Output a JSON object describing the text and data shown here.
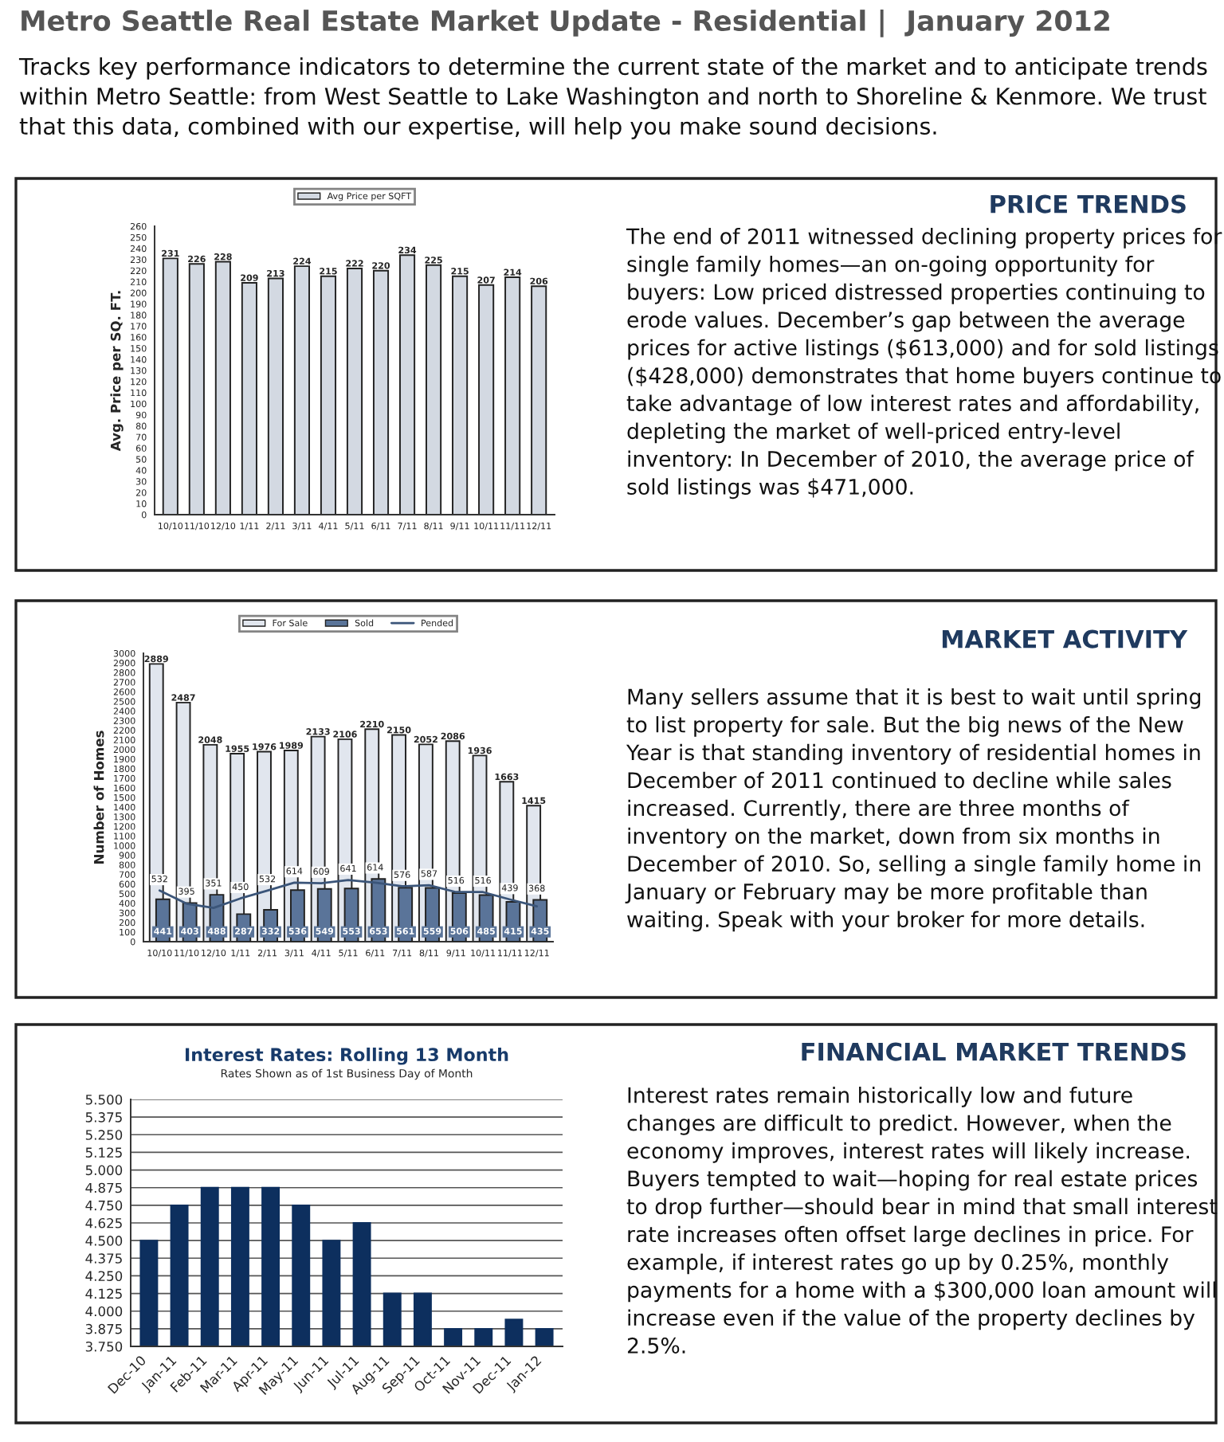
{
  "chart_data": [
    {
      "type": "other",
      "title": "Metro Seattle Real Estate Market Update - Residential |  January 2012",
      "annotations": [
        "Tracks key performance indicators to determine the current state of the market and to anticipate trends within Metro Seattle: from West Seattle to Lake Washington and north to Shoreline & Kenmore. We trust that this data, combined with our expertise, will help you make sound decisions."
      ]
    },
    {
      "type": "bar",
      "categories": [
        "10/10",
        "11/10",
        "12/10",
        "1/11",
        "2/11",
        "3/11",
        "4/11",
        "5/11",
        "6/11",
        "7/11",
        "8/11",
        "9/11",
        "10/11",
        "11/11",
        "12/11"
      ],
      "series": [
        {
          "name": "Avg Price per SQFT",
          "color": "#d3d9e2",
          "values": [
            231,
            226,
            228,
            209,
            213,
            224,
            215,
            222,
            220,
            234,
            225,
            215,
            207,
            214,
            206
          ]
        }
      ],
      "ylabel": "Avg. Price per SQ. FT.",
      "ylim": [
        0,
        260
      ],
      "yticks": [
        0,
        10,
        20,
        30,
        40,
        50,
        60,
        70,
        80,
        90,
        100,
        110,
        120,
        130,
        140,
        150,
        160,
        170,
        180,
        190,
        200,
        210,
        220,
        230,
        240,
        250,
        260
      ],
      "data_labels": true,
      "legend": "top"
    },
    {
      "type": "other",
      "title": "PRICE TRENDS",
      "annotations": [
        "The end of 2011 witnessed declining property prices for single family homes—an on-going opportunity for buyers: Low priced distressed properties continuing to erode values. December’s gap between the average prices for active listings ($613,000) and for sold listings ($428,000) demonstrates that home buyers continue to take advantage of low interest rates and affordability, depleting the market of well-priced entry-level inventory: In December of 2010, the average price of sold listings was $471,000."
      ]
    },
    {
      "type": "bar",
      "categories": [
        "10/10",
        "11/10",
        "12/10",
        "1/11",
        "2/11",
        "3/11",
        "4/11",
        "5/11",
        "6/11",
        "7/11",
        "8/11",
        "9/11",
        "10/11",
        "11/11",
        "12/11"
      ],
      "series": [
        {
          "name": "For Sale",
          "color": "#e1e6ee",
          "values": [
            2889,
            2487,
            2048,
            1955,
            1976,
            1989,
            2133,
            2106,
            2210,
            2150,
            2052,
            2086,
            1936,
            1663,
            1415
          ]
        },
        {
          "name": "Sold",
          "color": "#5a7499",
          "values": [
            441,
            403,
            488,
            287,
            332,
            536,
            549,
            553,
            653,
            561,
            559,
            506,
            485,
            415,
            435
          ]
        },
        {
          "name": "Pended",
          "type": "line",
          "color": "#3b5579",
          "values": [
            532,
            395,
            351,
            450,
            532,
            614,
            609,
            641,
            614,
            576,
            587,
            516,
            516,
            439,
            368
          ]
        }
      ],
      "ylabel": "Number of Homes",
      "ylim": [
        0,
        3000
      ],
      "yticks": [
        0,
        100,
        200,
        300,
        400,
        500,
        600,
        700,
        800,
        900,
        1000,
        1100,
        1200,
        1300,
        1400,
        1500,
        1600,
        1700,
        1800,
        1900,
        2000,
        2100,
        2200,
        2300,
        2400,
        2500,
        2600,
        2700,
        2800,
        2900,
        3000
      ],
      "data_labels": true,
      "legend": "top"
    },
    {
      "type": "other",
      "title": "MARKET ACTIVITY",
      "annotations": [
        "Many sellers assume that it is best to wait until spring to list property for sale. But the big news of the New Year is that standing inventory of residential homes in December of 2011 continued to decline while sales increased. Currently, there are three months of inventory on the market, down from six months in December of 2010. So, selling a single family home in January or February may be more profitable than waiting. Speak with your broker for more details."
      ]
    },
    {
      "type": "bar",
      "title": "Interest Rates: Rolling 13 Month",
      "subtitle": "Rates Shown as of 1st Business Day of Month",
      "categories": [
        "Dec-10",
        "Jan-11",
        "Feb-11",
        "Mar-11",
        "Apr-11",
        "May-11",
        "Jun-11",
        "Jul-11",
        "Aug-11",
        "Sep-11",
        "Oct-11",
        "Nov-11",
        "Dec-11",
        "Jan-12"
      ],
      "values": [
        4.5,
        4.75,
        4.875,
        4.875,
        4.875,
        4.75,
        4.5,
        4.625,
        4.125,
        4.125,
        3.875,
        3.875,
        3.94,
        3.875
      ],
      "color": "#0d2f5e",
      "ylim": [
        3.75,
        5.5
      ],
      "yticks": [
        {
          "value": 3.75,
          "label": "3.750"
        },
        {
          "value": 3.875,
          "label": "3.875"
        },
        {
          "value": 4.0,
          "label": "4.000"
        },
        {
          "value": 4.125,
          "label": "4.125"
        },
        {
          "value": 4.25,
          "label": "4.250"
        },
        {
          "value": 4.375,
          "label": "4.375"
        },
        {
          "value": 4.5,
          "label": "4.500"
        },
        {
          "value": 4.625,
          "label": "4.625"
        },
        {
          "value": 4.75,
          "label": "4.750"
        },
        {
          "value": 4.875,
          "label": "4.875"
        },
        {
          "value": 5.0,
          "label": "5.000"
        },
        {
          "value": 5.125,
          "label": "5.125"
        },
        {
          "value": 5.25,
          "label": "5.250"
        },
        {
          "value": 5.375,
          "label": "5.375"
        },
        {
          "value": 5.5,
          "label": "5.500"
        }
      ],
      "grid": "y"
    },
    {
      "type": "other",
      "title": "FINANCIAL MARKET TRENDS",
      "annotations": [
        "Interest rates remain historically low and future changes are difficult to predict. However, when the economy improves, interest rates will likely increase. Buyers tempted to wait—hoping for real estate prices to drop further—should bear in mind that small interest rate increases often offset large declines in price. For example, if interest rates go up by 0.25%, monthly payments for a home with a $300,000 loan amount will increase even if the value of the property declines by 2.5%."
      ]
    }
  ]
}
